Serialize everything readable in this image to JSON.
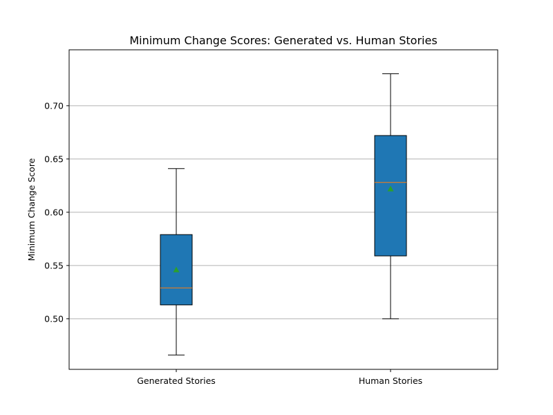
{
  "chart_data": {
    "type": "box",
    "title": "Minimum Change Scores: Generated vs. Human Stories",
    "xlabel": "",
    "ylabel": "Minimum Change Score",
    "ylim": [
      0.4525,
      0.7525
    ],
    "yticks": [
      0.5,
      0.55,
      0.6,
      0.65,
      0.7
    ],
    "ytick_labels": [
      "0.50",
      "0.55",
      "0.60",
      "0.65",
      "0.70"
    ],
    "grid": "y",
    "categories": [
      "Generated Stories",
      "Human Stories"
    ],
    "boxes": [
      {
        "whisker_low": 0.466,
        "q1": 0.513,
        "median": 0.529,
        "q3": 0.579,
        "whisker_high": 0.641,
        "mean": 0.546
      },
      {
        "whisker_low": 0.5,
        "q1": 0.559,
        "median": 0.628,
        "q3": 0.672,
        "whisker_high": 0.73,
        "mean": 0.622
      }
    ],
    "colors": {
      "box_fill": "#1f77b4",
      "median": "#ff7f0e",
      "mean_marker": "#2ca02c",
      "grid": "#b0b0b0",
      "edge": "#000000"
    }
  }
}
